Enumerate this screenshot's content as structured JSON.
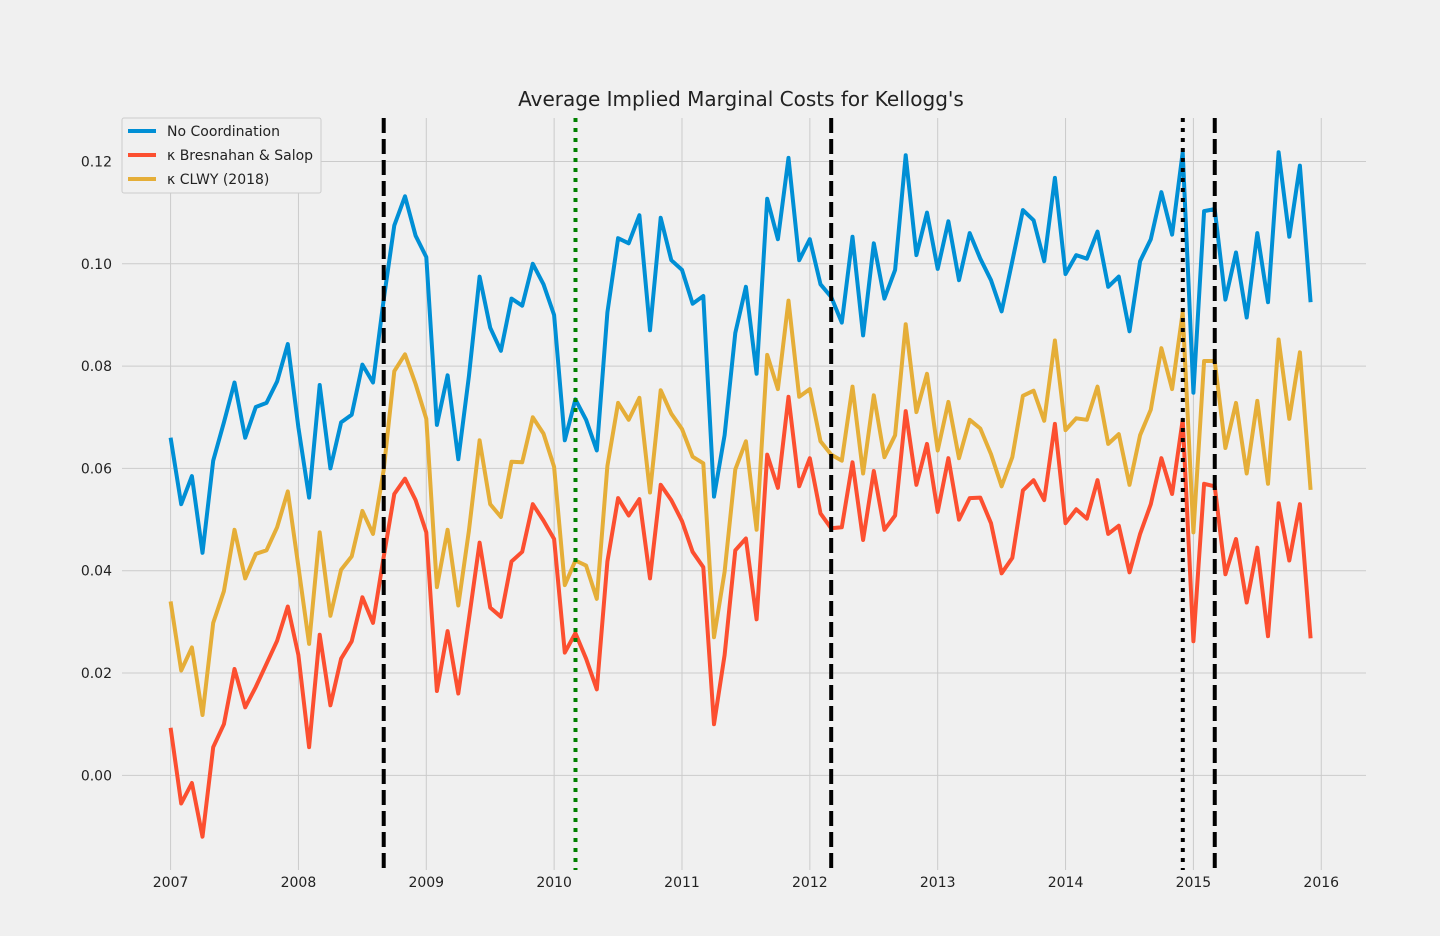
{
  "chart_data": {
    "type": "line",
    "title": "Average Implied Marginal Costs for Kellogg's",
    "xlabel": "",
    "ylabel": "",
    "xlim": [
      2006.62,
      2016.35
    ],
    "ylim": [
      -0.0185,
      0.1285
    ],
    "grid": true,
    "legend": "top-left",
    "x_ticks": [
      2007,
      2008,
      2009,
      2010,
      2011,
      2012,
      2013,
      2014,
      2015,
      2016
    ],
    "x_tick_labels": [
      "2007",
      "2008",
      "2009",
      "2010",
      "2011",
      "2012",
      "2013",
      "2014",
      "2015",
      "2016"
    ],
    "y_ticks": [
      0.0,
      0.02,
      0.04,
      0.06,
      0.08,
      0.1,
      0.12
    ],
    "y_tick_labels": [
      "0.00",
      "0.02",
      "0.04",
      "0.06",
      "0.08",
      "0.10",
      "0.12"
    ],
    "x_start": 2007.0,
    "x_step_months": 1,
    "series": [
      {
        "name": "No Coordination",
        "color": "#008fd5",
        "values": [
          0.066,
          0.053,
          0.0585,
          0.0435,
          0.0615,
          0.069,
          0.0768,
          0.066,
          0.072,
          0.0728,
          0.077,
          0.0843,
          0.068,
          0.0543,
          0.0763,
          0.06,
          0.069,
          0.0705,
          0.0803,
          0.0768,
          0.093,
          0.1075,
          0.1132,
          0.1055,
          0.1013,
          0.0685,
          0.0782,
          0.0618,
          0.078,
          0.0975,
          0.0875,
          0.083,
          0.0932,
          0.0918,
          0.1,
          0.096,
          0.09,
          0.0655,
          0.0735,
          0.0695,
          0.0635,
          0.0905,
          0.105,
          0.104,
          0.1095,
          0.087,
          0.109,
          0.1007,
          0.0988,
          0.0922,
          0.0937,
          0.0545,
          0.0665,
          0.0865,
          0.0955,
          0.0785,
          0.1127,
          0.1048,
          0.1207,
          0.1007,
          0.1048,
          0.096,
          0.0935,
          0.0885,
          0.1053,
          0.086,
          0.104,
          0.0932,
          0.0988,
          0.1212,
          0.1017,
          0.11,
          0.099,
          0.1083,
          0.0968,
          0.106,
          0.101,
          0.0968,
          0.0907,
          0.1005,
          0.1105,
          0.1085,
          0.1005,
          0.1168,
          0.098,
          0.1017,
          0.101,
          0.1063,
          0.0955,
          0.0975,
          0.0868,
          0.1005,
          0.1048,
          0.114,
          0.1057,
          0.1218,
          0.0748,
          0.1103,
          0.1107,
          0.093,
          0.1022,
          0.0895,
          0.106,
          0.0925,
          0.1218,
          0.1053,
          0.1192,
          0.0925
        ]
      },
      {
        "name": "κ Bresnahan & Salop",
        "color": "#fc4f30",
        "values": [
          0.0093,
          -0.0055,
          -0.0015,
          -0.012,
          0.0055,
          0.01,
          0.0208,
          0.0133,
          0.0173,
          0.0218,
          0.0263,
          0.033,
          0.0235,
          0.0055,
          0.0275,
          0.0137,
          0.0228,
          0.0262,
          0.0348,
          0.0298,
          0.0427,
          0.055,
          0.058,
          0.0538,
          0.0475,
          0.0165,
          0.0282,
          0.016,
          0.0305,
          0.0455,
          0.0328,
          0.031,
          0.0418,
          0.0437,
          0.053,
          0.0498,
          0.0462,
          0.024,
          0.0278,
          0.0228,
          0.0168,
          0.0418,
          0.0542,
          0.0508,
          0.054,
          0.0385,
          0.0568,
          0.0538,
          0.0497,
          0.0437,
          0.0407,
          0.01,
          0.0235,
          0.044,
          0.0463,
          0.0305,
          0.0627,
          0.0562,
          0.074,
          0.0565,
          0.062,
          0.0512,
          0.0483,
          0.0485,
          0.0612,
          0.046,
          0.0595,
          0.048,
          0.0508,
          0.0712,
          0.0568,
          0.0648,
          0.0515,
          0.062,
          0.05,
          0.0542,
          0.0543,
          0.0493,
          0.0395,
          0.0425,
          0.0557,
          0.0577,
          0.0538,
          0.0687,
          0.0493,
          0.052,
          0.0502,
          0.0577,
          0.0472,
          0.0488,
          0.0397,
          0.0472,
          0.053,
          0.062,
          0.055,
          0.0695,
          0.0262,
          0.057,
          0.0565,
          0.0393,
          0.0462,
          0.0338,
          0.0445,
          0.0272,
          0.0532,
          0.042,
          0.053,
          0.0268
        ]
      },
      {
        "name": "κ CLWY (2018)",
        "color": "#e5ae38",
        "values": [
          0.034,
          0.0205,
          0.025,
          0.0118,
          0.0298,
          0.036,
          0.048,
          0.0385,
          0.0433,
          0.044,
          0.0485,
          0.0555,
          0.0408,
          0.0257,
          0.0475,
          0.0312,
          0.0402,
          0.0428,
          0.0517,
          0.0472,
          0.0597,
          0.079,
          0.0823,
          0.0765,
          0.0697,
          0.0368,
          0.048,
          0.0332,
          0.0478,
          0.0655,
          0.053,
          0.0505,
          0.0613,
          0.0612,
          0.07,
          0.0668,
          0.0603,
          0.0372,
          0.042,
          0.041,
          0.0345,
          0.0605,
          0.0728,
          0.0695,
          0.0738,
          0.0553,
          0.0753,
          0.0707,
          0.0677,
          0.0623,
          0.061,
          0.027,
          0.0398,
          0.0598,
          0.0653,
          0.048,
          0.0822,
          0.0755,
          0.0928,
          0.074,
          0.0755,
          0.0653,
          0.0627,
          0.0615,
          0.076,
          0.059,
          0.0743,
          0.0622,
          0.0665,
          0.0882,
          0.071,
          0.0785,
          0.0635,
          0.073,
          0.062,
          0.0695,
          0.0678,
          0.0628,
          0.0565,
          0.0622,
          0.0742,
          0.0752,
          0.0693,
          0.085,
          0.0675,
          0.0698,
          0.0695,
          0.076,
          0.0648,
          0.0667,
          0.0568,
          0.0665,
          0.0715,
          0.0835,
          0.0755,
          0.0905,
          0.0475,
          0.081,
          0.081,
          0.064,
          0.0728,
          0.059,
          0.0732,
          0.057,
          0.0852,
          0.0697,
          0.0827,
          0.0558
        ]
      }
    ],
    "vertical_lines": [
      {
        "x": 2008.667,
        "style": "dashed",
        "color": "#000000"
      },
      {
        "x": 2010.167,
        "style": "dotted",
        "color": "#008000"
      },
      {
        "x": 2012.167,
        "style": "dashed",
        "color": "#000000"
      },
      {
        "x": 2014.917,
        "style": "dotted",
        "color": "#000000"
      },
      {
        "x": 2015.167,
        "style": "dashed",
        "color": "#000000"
      }
    ]
  }
}
